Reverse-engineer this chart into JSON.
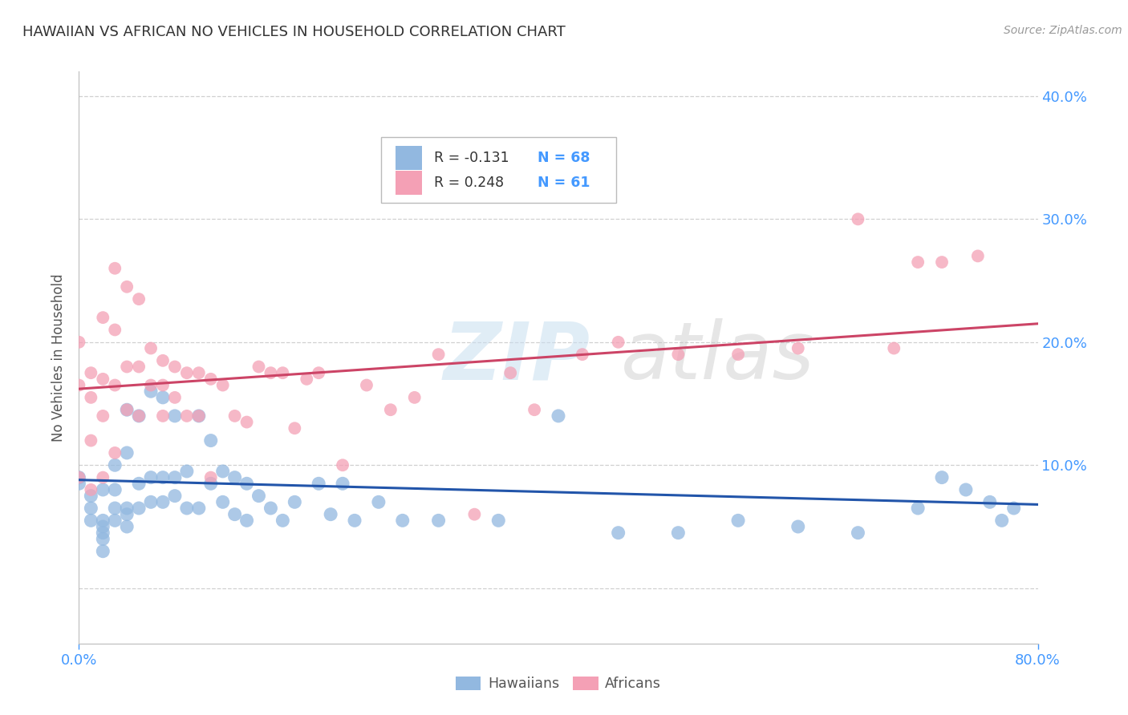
{
  "title": "HAWAIIAN VS AFRICAN NO VEHICLES IN HOUSEHOLD CORRELATION CHART",
  "source": "Source: ZipAtlas.com",
  "ylabel": "No Vehicles in Household",
  "watermark_zip": "ZIP",
  "watermark_atlas": "atlas",
  "legend_r_hawaiians": "R = -0.131",
  "legend_n_hawaiians": "N = 68",
  "legend_r_africans": "R = 0.248",
  "legend_n_africans": "N = 61",
  "hawaiians_color": "#92b8e0",
  "africans_color": "#f4a0b5",
  "line_hawaiians_color": "#2255aa",
  "line_africans_color": "#cc4466",
  "background_color": "#ffffff",
  "title_color": "#333333",
  "axis_label_color": "#4499ff",
  "grid_color": "#d0d0d0",
  "xlim": [
    0.0,
    0.8
  ],
  "ylim": [
    -0.045,
    0.42
  ],
  "xticks": [
    0.0,
    0.8
  ],
  "xtick_labels": [
    "0.0%",
    "80.0%"
  ],
  "yticks": [
    0.0,
    0.1,
    0.2,
    0.3,
    0.4
  ],
  "ytick_labels": [
    "",
    "10.0%",
    "20.0%",
    "30.0%",
    "40.0%"
  ],
  "hawaiians_x": [
    0.0,
    0.0,
    0.01,
    0.01,
    0.01,
    0.02,
    0.02,
    0.02,
    0.02,
    0.02,
    0.02,
    0.03,
    0.03,
    0.03,
    0.03,
    0.04,
    0.04,
    0.04,
    0.04,
    0.04,
    0.05,
    0.05,
    0.05,
    0.06,
    0.06,
    0.06,
    0.07,
    0.07,
    0.07,
    0.08,
    0.08,
    0.08,
    0.09,
    0.09,
    0.1,
    0.1,
    0.11,
    0.11,
    0.12,
    0.12,
    0.13,
    0.13,
    0.14,
    0.14,
    0.15,
    0.16,
    0.17,
    0.18,
    0.2,
    0.21,
    0.22,
    0.23,
    0.25,
    0.27,
    0.3,
    0.35,
    0.4,
    0.45,
    0.5,
    0.55,
    0.6,
    0.65,
    0.7,
    0.72,
    0.74,
    0.76,
    0.77,
    0.78
  ],
  "hawaiians_y": [
    0.085,
    0.09,
    0.075,
    0.065,
    0.055,
    0.08,
    0.055,
    0.05,
    0.045,
    0.04,
    0.03,
    0.1,
    0.08,
    0.065,
    0.055,
    0.145,
    0.11,
    0.065,
    0.06,
    0.05,
    0.14,
    0.085,
    0.065,
    0.16,
    0.09,
    0.07,
    0.155,
    0.09,
    0.07,
    0.14,
    0.09,
    0.075,
    0.095,
    0.065,
    0.14,
    0.065,
    0.12,
    0.085,
    0.095,
    0.07,
    0.09,
    0.06,
    0.085,
    0.055,
    0.075,
    0.065,
    0.055,
    0.07,
    0.085,
    0.06,
    0.085,
    0.055,
    0.07,
    0.055,
    0.055,
    0.055,
    0.14,
    0.045,
    0.045,
    0.055,
    0.05,
    0.045,
    0.065,
    0.09,
    0.08,
    0.07,
    0.055,
    0.065
  ],
  "africans_x": [
    0.0,
    0.0,
    0.0,
    0.01,
    0.01,
    0.01,
    0.01,
    0.02,
    0.02,
    0.02,
    0.02,
    0.03,
    0.03,
    0.03,
    0.03,
    0.04,
    0.04,
    0.04,
    0.05,
    0.05,
    0.05,
    0.06,
    0.06,
    0.07,
    0.07,
    0.07,
    0.08,
    0.08,
    0.09,
    0.09,
    0.1,
    0.1,
    0.11,
    0.11,
    0.12,
    0.13,
    0.14,
    0.15,
    0.16,
    0.17,
    0.18,
    0.19,
    0.2,
    0.22,
    0.24,
    0.26,
    0.28,
    0.3,
    0.33,
    0.36,
    0.38,
    0.42,
    0.45,
    0.5,
    0.55,
    0.6,
    0.65,
    0.68,
    0.7,
    0.72,
    0.75
  ],
  "africans_y": [
    0.2,
    0.165,
    0.09,
    0.175,
    0.155,
    0.12,
    0.08,
    0.22,
    0.17,
    0.14,
    0.09,
    0.26,
    0.21,
    0.165,
    0.11,
    0.245,
    0.18,
    0.145,
    0.235,
    0.18,
    0.14,
    0.195,
    0.165,
    0.185,
    0.165,
    0.14,
    0.18,
    0.155,
    0.175,
    0.14,
    0.175,
    0.14,
    0.17,
    0.09,
    0.165,
    0.14,
    0.135,
    0.18,
    0.175,
    0.175,
    0.13,
    0.17,
    0.175,
    0.1,
    0.165,
    0.145,
    0.155,
    0.19,
    0.06,
    0.175,
    0.145,
    0.19,
    0.2,
    0.19,
    0.19,
    0.195,
    0.3,
    0.195,
    0.265,
    0.265,
    0.27
  ],
  "hawaiians_line_x": [
    0.0,
    0.8
  ],
  "hawaiians_line_y": [
    0.088,
    0.068
  ],
  "africans_line_x": [
    0.0,
    0.8
  ],
  "africans_line_y": [
    0.162,
    0.215
  ]
}
